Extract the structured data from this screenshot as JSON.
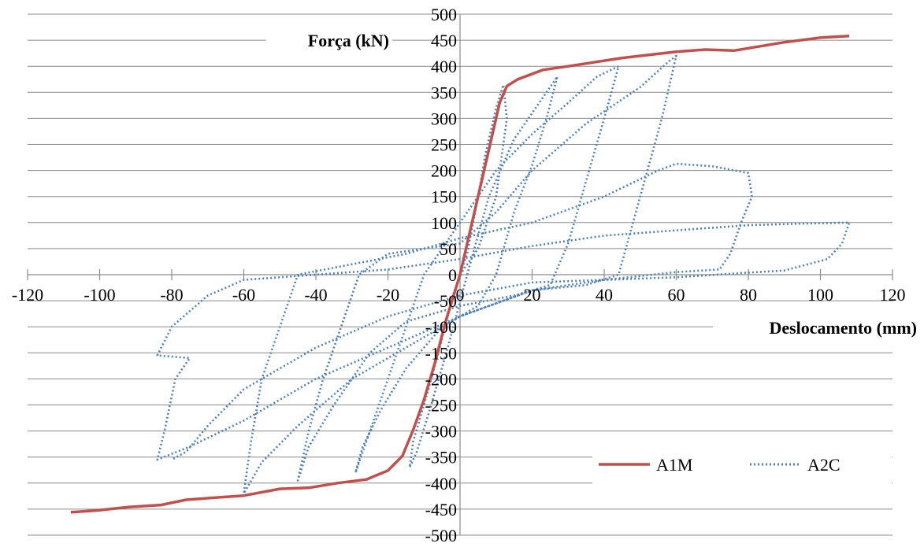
{
  "chart_data": {
    "type": "line",
    "xlabel": "Deslocamento (mm)",
    "ylabel": "Força (kN)",
    "xlim": [
      -120,
      120
    ],
    "ylim": [
      -500,
      500
    ],
    "x_ticks": [
      -120,
      -100,
      -80,
      -60,
      -40,
      -20,
      0,
      20,
      40,
      60,
      80,
      100,
      120
    ],
    "y_ticks": [
      -500,
      -450,
      -400,
      -350,
      -300,
      -250,
      -200,
      -150,
      -100,
      -50,
      0,
      50,
      100,
      150,
      200,
      250,
      300,
      350,
      400,
      450,
      500
    ],
    "grid": "horizontal",
    "legend_position": "bottom-right",
    "series": [
      {
        "name": "A1M",
        "color": "#C0504D",
        "style": "solid",
        "points": [
          [
            -108,
            -456
          ],
          [
            -100,
            -452
          ],
          [
            -92,
            -446
          ],
          [
            -83,
            -442
          ],
          [
            -76,
            -432
          ],
          [
            -68,
            -428
          ],
          [
            -60,
            -424
          ],
          [
            -50,
            -411
          ],
          [
            -42,
            -409
          ],
          [
            -34,
            -400
          ],
          [
            -26,
            -393
          ],
          [
            -20,
            -376
          ],
          [
            -16,
            -348
          ],
          [
            -13,
            -298
          ],
          [
            -10,
            -240
          ],
          [
            -7,
            -170
          ],
          [
            -4,
            -90
          ],
          [
            0,
            0
          ],
          [
            3,
            90
          ],
          [
            6,
            180
          ],
          [
            9,
            270
          ],
          [
            11,
            330
          ],
          [
            13,
            362
          ],
          [
            16,
            375
          ],
          [
            23,
            393
          ],
          [
            30,
            400
          ],
          [
            45,
            416
          ],
          [
            60,
            428
          ],
          [
            68,
            432
          ],
          [
            76,
            430
          ],
          [
            90,
            446
          ],
          [
            100,
            455
          ],
          [
            108,
            458
          ]
        ]
      },
      {
        "name": "A2C",
        "color": "#4F81BD",
        "style": "dotted",
        "points": [
          [
            0,
            0
          ],
          [
            5,
            50
          ],
          [
            10,
            150
          ],
          [
            13,
            300
          ],
          [
            12,
            364
          ],
          [
            10,
            320
          ],
          [
            7,
            230
          ],
          [
            5,
            150
          ],
          [
            2,
            40
          ],
          [
            -2,
            -40
          ],
          [
            -6,
            -150
          ],
          [
            -10,
            -250
          ],
          [
            -13,
            -320
          ],
          [
            -14,
            -370
          ],
          [
            -12,
            -340
          ],
          [
            -8,
            -250
          ],
          [
            -3,
            -130
          ],
          [
            2,
            0
          ],
          [
            8,
            150
          ],
          [
            15,
            260
          ],
          [
            22,
            330
          ],
          [
            27,
            380
          ],
          [
            24,
            300
          ],
          [
            20,
            210
          ],
          [
            15,
            120
          ],
          [
            10,
            0
          ],
          [
            5,
            -60
          ],
          [
            -5,
            -100
          ],
          [
            -15,
            -180
          ],
          [
            -22,
            -260
          ],
          [
            -27,
            -330
          ],
          [
            -29,
            -380
          ],
          [
            -25,
            -300
          ],
          [
            -20,
            -200
          ],
          [
            -15,
            -100
          ],
          [
            -10,
            0
          ],
          [
            0,
            100
          ],
          [
            10,
            200
          ],
          [
            20,
            270
          ],
          [
            30,
            330
          ],
          [
            38,
            380
          ],
          [
            44,
            400
          ],
          [
            40,
            300
          ],
          [
            35,
            180
          ],
          [
            30,
            60
          ],
          [
            25,
            -20
          ],
          [
            15,
            -40
          ],
          [
            0,
            -60
          ],
          [
            -15,
            -90
          ],
          [
            -25,
            -150
          ],
          [
            -35,
            -250
          ],
          [
            -42,
            -330
          ],
          [
            -45,
            -395
          ],
          [
            -42,
            -300
          ],
          [
            -38,
            -200
          ],
          [
            -33,
            -100
          ],
          [
            -28,
            0
          ],
          [
            -20,
            40
          ],
          [
            0,
            60
          ],
          [
            10,
            120
          ],
          [
            20,
            200
          ],
          [
            35,
            290
          ],
          [
            50,
            360
          ],
          [
            58,
            410
          ],
          [
            60,
            420
          ],
          [
            56,
            300
          ],
          [
            52,
            200
          ],
          [
            48,
            100
          ],
          [
            44,
            0
          ],
          [
            35,
            -20
          ],
          [
            20,
            -30
          ],
          [
            0,
            -80
          ],
          [
            -15,
            -140
          ],
          [
            -30,
            -200
          ],
          [
            -45,
            -290
          ],
          [
            -55,
            -360
          ],
          [
            -60,
            -420
          ],
          [
            -58,
            -320
          ],
          [
            -55,
            -200
          ],
          [
            -50,
            -100
          ],
          [
            -45,
            0
          ],
          [
            -30,
            20
          ],
          [
            -15,
            40
          ],
          [
            0,
            70
          ],
          [
            20,
            100
          ],
          [
            40,
            150
          ],
          [
            55,
            200
          ],
          [
            60,
            213
          ],
          [
            70,
            208
          ],
          [
            80,
            195
          ],
          [
            81,
            150
          ],
          [
            78,
            100
          ],
          [
            75,
            40
          ],
          [
            72,
            10
          ],
          [
            60,
            5
          ],
          [
            40,
            -10
          ],
          [
            20,
            -30
          ],
          [
            0,
            -80
          ],
          [
            -20,
            -140
          ],
          [
            -40,
            -200
          ],
          [
            -60,
            -280
          ],
          [
            -75,
            -330
          ],
          [
            -84,
            -355
          ],
          [
            -82,
            -300
          ],
          [
            -79,
            -200
          ],
          [
            -75,
            -160
          ],
          [
            -84,
            -155
          ],
          [
            -80,
            -100
          ],
          [
            -70,
            -40
          ],
          [
            -60,
            -10
          ],
          [
            -40,
            0
          ],
          [
            -20,
            10
          ],
          [
            0,
            30
          ],
          [
            20,
            55
          ],
          [
            40,
            75
          ],
          [
            60,
            85
          ],
          [
            80,
            95
          ],
          [
            95,
            98
          ],
          [
            108,
            100
          ],
          [
            106,
            60
          ],
          [
            102,
            30
          ],
          [
            90,
            8
          ],
          [
            80,
            4
          ],
          [
            60,
            -5
          ],
          [
            40,
            -10
          ],
          [
            20,
            -15
          ],
          [
            0,
            -40
          ],
          [
            -20,
            -80
          ],
          [
            -40,
            -140
          ],
          [
            -60,
            -220
          ],
          [
            -70,
            -290
          ],
          [
            -76,
            -340
          ],
          [
            -80,
            -355
          ]
        ]
      }
    ]
  }
}
